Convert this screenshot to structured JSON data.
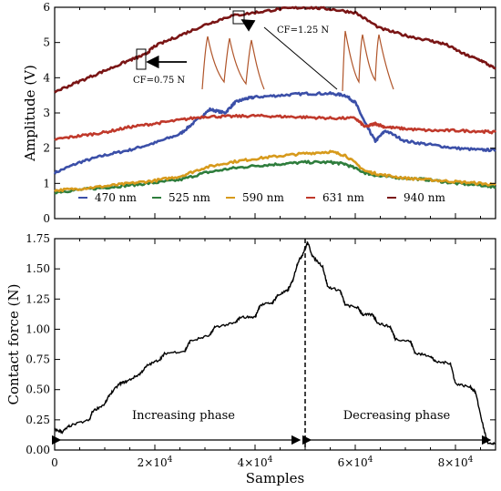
{
  "chart_data": [
    {
      "type": "line",
      "ylabel": "Amplitude (V)",
      "xlim": [
        0,
        88000
      ],
      "ylim": [
        0,
        6
      ],
      "yticks": [
        "0",
        "1",
        "2",
        "3",
        "4",
        "5",
        "6"
      ],
      "series": [
        {
          "name": "470 nm",
          "color": "#3b4fa8",
          "x": [
            0,
            5000,
            10000,
            15000,
            20000,
            25000,
            28000,
            31000,
            34000,
            36000,
            38000,
            40000,
            45000,
            50000,
            55000,
            58000,
            60000,
            62000,
            64000,
            66000,
            70000,
            75000,
            80000,
            85000,
            88000
          ],
          "values": [
            1.3,
            1.6,
            1.8,
            1.95,
            2.15,
            2.4,
            2.75,
            3.1,
            3.0,
            3.3,
            3.4,
            3.45,
            3.5,
            3.55,
            3.55,
            3.5,
            3.3,
            2.7,
            2.2,
            2.5,
            2.2,
            2.1,
            2.0,
            1.95,
            1.95
          ]
        },
        {
          "name": "525 nm",
          "color": "#2e7d3c",
          "x": [
            0,
            5000,
            10000,
            15000,
            20000,
            25000,
            30000,
            35000,
            40000,
            45000,
            50000,
            55000,
            58000,
            62000,
            65000,
            70000,
            75000,
            80000,
            85000,
            88000
          ],
          "values": [
            0.75,
            0.82,
            0.88,
            0.95,
            1.02,
            1.1,
            1.3,
            1.42,
            1.5,
            1.55,
            1.6,
            1.6,
            1.55,
            1.3,
            1.2,
            1.15,
            1.1,
            1.0,
            0.95,
            0.9
          ]
        },
        {
          "name": "590 nm",
          "color": "#d79a1c",
          "x": [
            0,
            5000,
            10000,
            15000,
            20000,
            25000,
            30000,
            35000,
            40000,
            45000,
            50000,
            55000,
            58000,
            62000,
            65000,
            70000,
            75000,
            80000,
            85000,
            88000
          ],
          "values": [
            0.8,
            0.85,
            0.92,
            1.0,
            1.08,
            1.2,
            1.45,
            1.6,
            1.7,
            1.78,
            1.85,
            1.9,
            1.8,
            1.35,
            1.25,
            1.15,
            1.1,
            1.05,
            1.0,
            0.95
          ]
        },
        {
          "name": "631 nm",
          "color": "#c0392b",
          "x": [
            0,
            5000,
            10000,
            15000,
            20000,
            25000,
            30000,
            35000,
            40000,
            45000,
            50000,
            55000,
            60000,
            62000,
            64000,
            66000,
            70000,
            75000,
            80000,
            85000,
            88000
          ],
          "values": [
            2.25,
            2.35,
            2.45,
            2.6,
            2.7,
            2.8,
            2.9,
            2.9,
            2.92,
            2.9,
            2.88,
            2.85,
            2.85,
            2.6,
            2.7,
            2.6,
            2.55,
            2.5,
            2.5,
            2.48,
            2.45
          ]
        },
        {
          "name": "940 nm",
          "color": "#7a1515",
          "x": [
            0,
            5000,
            10000,
            15000,
            18000,
            20000,
            25000,
            30000,
            35000,
            40000,
            45000,
            50000,
            55000,
            60000,
            65000,
            70000,
            75000,
            78000,
            82000,
            85000,
            88000
          ],
          "values": [
            3.6,
            3.9,
            4.2,
            4.5,
            4.65,
            4.9,
            5.2,
            5.5,
            5.75,
            5.85,
            5.95,
            6.0,
            5.95,
            5.85,
            5.4,
            5.2,
            5.05,
            4.95,
            4.65,
            4.5,
            4.25
          ]
        }
      ],
      "annotations": [
        "CF=0.75 N",
        "CF=1.25 N"
      ],
      "legend_placement": "bottom",
      "grid": false
    },
    {
      "type": "line",
      "xlabel": "Samples",
      "ylabel": "Contact force (N)",
      "xlim": [
        0,
        88000
      ],
      "ylim": [
        0,
        1.75
      ],
      "yticks": [
        "0.00",
        "0.25",
        "0.50",
        "0.75",
        "1.00",
        "1.25",
        "1.50",
        "1.75"
      ],
      "xtick_values": [
        0,
        20000,
        40000,
        60000,
        80000
      ],
      "xtick_labels": [
        "0",
        "2×10",
        "4×10",
        "6×10",
        "8×10"
      ],
      "xtick_exponent": "4",
      "series": [
        {
          "color": "#000000",
          "x": [
            0,
            1500,
            3000,
            7000,
            7500,
            10000,
            11000,
            13000,
            14500,
            17000,
            18500,
            21000,
            22000,
            26000,
            27000,
            31000,
            32000,
            36000,
            37000,
            40000,
            41000,
            43500,
            44500,
            46500,
            47500,
            48500,
            49500,
            50500,
            51500,
            53500,
            54500,
            57000,
            58000,
            60500,
            61500,
            63500,
            64500,
            67000,
            68000,
            71000,
            72000,
            75000,
            76000,
            79000,
            80000,
            83000,
            84000,
            85500,
            86500,
            88000
          ],
          "values": [
            0.17,
            0.15,
            0.2,
            0.25,
            0.32,
            0.38,
            0.46,
            0.55,
            0.57,
            0.63,
            0.7,
            0.75,
            0.8,
            0.82,
            0.9,
            0.95,
            1.02,
            1.05,
            1.1,
            1.1,
            1.2,
            1.22,
            1.28,
            1.32,
            1.4,
            1.55,
            1.62,
            1.72,
            1.6,
            1.52,
            1.35,
            1.32,
            1.2,
            1.18,
            1.12,
            1.12,
            1.05,
            1.02,
            0.92,
            0.9,
            0.8,
            0.78,
            0.73,
            0.72,
            0.55,
            0.52,
            0.48,
            0.2,
            0.05,
            0.05
          ]
        }
      ],
      "vertical_marker_x": 50000,
      "phase_labels": {
        "increasing": "Increasing phase",
        "decreasing": "Decreasing phase"
      },
      "grid": false
    }
  ]
}
